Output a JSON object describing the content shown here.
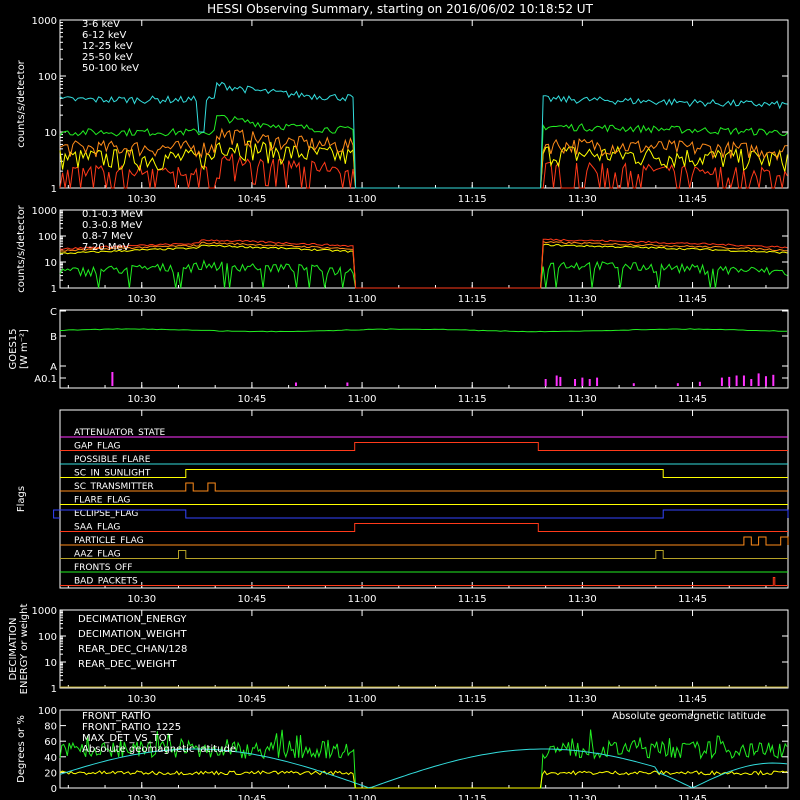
{
  "title": "HESSI Observing Summary, starting on 2016/06/02 10:18:52 UT",
  "colors": {
    "red": "#ff3a1a",
    "orange": "#ff8c1a",
    "yellow": "#ffff00",
    "green": "#22ee22",
    "cyan": "#33dddd",
    "magenta": "#ff33ff",
    "blue": "#3344ff",
    "olive": "#b5a227",
    "white": "#ffffff"
  },
  "chart_data": [
    {
      "id": "xray",
      "type": "line",
      "ylabel": "counts/s/detector",
      "ylog": true,
      "ylim": [
        1,
        1000
      ],
      "yticks": [
        "1",
        "10",
        "100",
        "1000"
      ],
      "xticks": [
        "10:30",
        "10:45",
        "11:00",
        "11:15",
        "11:30",
        "11:45"
      ],
      "series": [
        {
          "name": "3-6 keV",
          "color": "red"
        },
        {
          "name": "6-12 keV",
          "color": "orange"
        },
        {
          "name": "12-25 keV",
          "color": "yellow"
        },
        {
          "name": "25-50 keV",
          "color": "green"
        },
        {
          "name": "50-100 keV",
          "color": "cyan"
        }
      ]
    },
    {
      "id": "gamma",
      "type": "line",
      "ylabel": "counts/s/detector",
      "ylog": true,
      "ylim": [
        1,
        1000
      ],
      "yticks": [
        "1",
        "10",
        "100",
        "1000"
      ],
      "xticks": [
        "10:30",
        "10:45",
        "11:00",
        "11:15",
        "11:30",
        "11:45"
      ],
      "series": [
        {
          "name": "0.1-0.3 MeV",
          "color": "red"
        },
        {
          "name": "0.3-0.8 MeV",
          "color": "orange"
        },
        {
          "name": "0.8-7 MeV",
          "color": "yellow"
        },
        {
          "name": "7-20 MeV",
          "color": "green"
        }
      ]
    },
    {
      "id": "goes",
      "type": "line",
      "ylabel": "GOES15",
      "ylabel2": "[W m⁻²]",
      "yticks": [
        "A0.1",
        "A",
        "B",
        "C"
      ],
      "xticks": [
        "10:30",
        "10:45",
        "11:00",
        "11:15",
        "11:30",
        "11:45"
      ],
      "series": [
        {
          "level": "B",
          "color": "green"
        },
        {
          "color": "magenta"
        }
      ]
    },
    {
      "id": "flags",
      "type": "line",
      "ylabel": "Flags",
      "xticks": [
        "10:30",
        "10:45",
        "11:00",
        "11:15",
        "11:30",
        "11:45"
      ],
      "series": [
        {
          "name": "ATTENUATOR_STATE",
          "color": "magenta",
          "on": []
        },
        {
          "name": "GAP_FLAG",
          "color": "red",
          "on": [
            [
              "10:59",
              "11:24"
            ]
          ]
        },
        {
          "name": "POSSIBLE_FLARE",
          "color": "cyan",
          "on": []
        },
        {
          "name": "SC_IN_SUNLIGHT",
          "color": "yellow",
          "on": [
            [
              "10:36",
              "11:41"
            ]
          ]
        },
        {
          "name": "SC_TRANSMITTER",
          "color": "orange",
          "on": [
            [
              "10:36",
              "10:37"
            ],
            [
              "10:39",
              "10:40"
            ]
          ]
        },
        {
          "name": "FLARE_FLAG",
          "color": "yellow",
          "on": []
        },
        {
          "name": "ECLIPSE_FLAG",
          "color": "blue",
          "on": [
            [
              "10:18",
              "10:36"
            ],
            [
              "11:41",
              "11:58"
            ]
          ]
        },
        {
          "name": "SAA_FLAG",
          "color": "red",
          "on": [
            [
              "10:59",
              "11:24"
            ]
          ]
        },
        {
          "name": "PARTICLE_FLAG",
          "color": "orange",
          "on": [
            [
              "11:52",
              "11:53"
            ],
            [
              "11:54",
              "11:55"
            ],
            [
              "11:57",
              "11:58"
            ]
          ]
        },
        {
          "name": "AAZ_FLAG",
          "color": "olive",
          "on": [
            [
              "10:35",
              "10:36"
            ],
            [
              "11:40",
              "11:41"
            ]
          ]
        },
        {
          "name": "FRONTS_OFF",
          "color": "green",
          "on": []
        },
        {
          "name": "BAD_PACKETS",
          "color": "red",
          "on": [
            [
              "11:56",
              "11:56"
            ]
          ]
        }
      ]
    },
    {
      "id": "decimation",
      "type": "line",
      "ylabel": "DECIMATION",
      "ylabel2": "ENERGY or weight",
      "ylog": true,
      "ylim": [
        1,
        1000
      ],
      "yticks": [
        "1",
        "10",
        "100",
        "1000"
      ],
      "xticks": [
        "10:30",
        "10:45",
        "11:00",
        "11:15",
        "11:30",
        "11:45"
      ],
      "series": [
        {
          "name": "DECIMATION_ENERGY",
          "color": "green"
        },
        {
          "name": "DECIMATION_WEIGHT",
          "color": "orange"
        },
        {
          "name": "REAR_DEC_CHAN/128",
          "color": "cyan"
        },
        {
          "name": "REAR_DEC_WEIGHT",
          "color": "olive"
        }
      ]
    },
    {
      "id": "ratio",
      "type": "line",
      "ylabel": "Degrees or %",
      "ylim": [
        0,
        100
      ],
      "yticks": [
        "0",
        "20",
        "40",
        "60",
        "80",
        "100"
      ],
      "xticks": [
        "10:30",
        "10:45",
        "11:00",
        "11:15",
        "11:30",
        "11:45"
      ],
      "note": "Absolute geomagnetic latitude",
      "series": [
        {
          "name": "FRONT_RATIO",
          "color": "yellow"
        },
        {
          "name": "FRONT_RATIO_1225",
          "color": "green"
        },
        {
          "name": "MAX_DET_VS_TOT",
          "color": "orange"
        },
        {
          "name": "Absolute geomagnetic latitude",
          "color": "cyan"
        }
      ]
    }
  ]
}
